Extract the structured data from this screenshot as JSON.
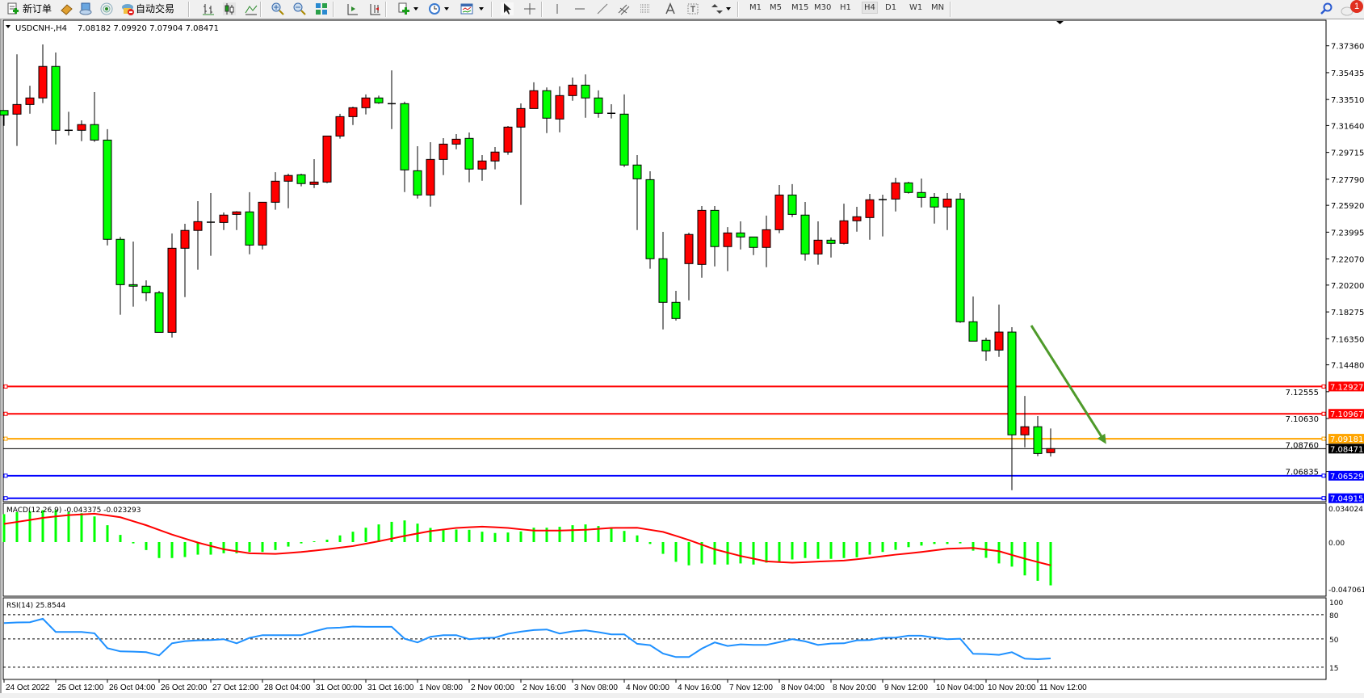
{
  "toolbar": {
    "new_order": "新订单",
    "auto_trading": "自动交易",
    "timeframes": [
      "M1",
      "M5",
      "M15",
      "M30",
      "H1",
      "H4",
      "D1",
      "W1",
      "MN"
    ],
    "active_timeframe": "H4"
  },
  "notifications": {
    "count": "1"
  },
  "chart": {
    "symbol_header": "USDCNH-,H4",
    "ohlc_header": "7.08182 7.09920 7.07904 7.08471"
  },
  "chart_data": {
    "type": "candlestick",
    "symbol": "USDCNH-",
    "timeframe": "H4",
    "colors": {
      "bull": "#ff0000",
      "bear": "#00ff00",
      "wick": "#000000"
    },
    "ohlc": [
      [
        7.3272,
        7.3272,
        7.3162,
        7.324
      ],
      [
        7.3246,
        7.3675,
        7.3018,
        7.3315
      ],
      [
        7.3315,
        7.345,
        7.3249,
        7.3362
      ],
      [
        7.3362,
        7.3746,
        7.3325,
        7.3588
      ],
      [
        7.3588,
        7.3688,
        7.3029,
        7.313
      ],
      [
        7.313,
        7.3263,
        7.3093,
        7.313
      ],
      [
        7.313,
        7.3201,
        7.3052,
        7.3171
      ],
      [
        7.3171,
        7.3404,
        7.3047,
        7.306
      ],
      [
        7.306,
        7.3138,
        7.2305,
        7.2348
      ],
      [
        7.2348,
        7.2365,
        7.1807,
        7.2023
      ],
      [
        7.2023,
        7.2332,
        7.1865,
        7.2012
      ],
      [
        7.2012,
        7.2054,
        7.1905,
        7.1965
      ],
      [
        7.1965,
        7.1979,
        7.1681,
        7.1681
      ],
      [
        7.1681,
        7.239,
        7.1644,
        7.2284
      ],
      [
        7.2284,
        7.246,
        7.1934,
        7.2412
      ],
      [
        7.2412,
        7.2622,
        7.2131,
        7.2475
      ],
      [
        7.2471,
        7.268,
        7.223,
        7.2471
      ],
      [
        7.2469,
        7.2541,
        7.2415,
        7.2522
      ],
      [
        7.2527,
        7.255,
        7.2415,
        7.2545
      ],
      [
        7.2545,
        7.2686,
        7.2241,
        7.2307
      ],
      [
        7.2307,
        7.2614,
        7.2276,
        7.2614
      ],
      [
        7.2614,
        7.283,
        7.256,
        7.2765
      ],
      [
        7.2765,
        7.2819,
        7.2571,
        7.2806
      ],
      [
        7.2811,
        7.2819,
        7.2728,
        7.2748
      ],
      [
        7.2742,
        7.2923,
        7.2716,
        7.2759
      ],
      [
        7.2759,
        7.3089,
        7.2751,
        7.3089
      ],
      [
        7.3089,
        7.3248,
        7.307,
        7.3228
      ],
      [
        7.3228,
        7.33,
        7.3168,
        7.3292
      ],
      [
        7.3292,
        7.3387,
        7.3244,
        7.3362
      ],
      [
        7.3362,
        7.3379,
        7.3319,
        7.3327
      ],
      [
        7.3321,
        7.356,
        7.3139,
        7.3321
      ],
      [
        7.3321,
        7.3335,
        7.2687,
        7.2846
      ],
      [
        7.284,
        7.3016,
        7.2641,
        7.2666
      ],
      [
        7.2666,
        7.3045,
        7.2583,
        7.2921
      ],
      [
        7.2921,
        7.3074,
        7.2809,
        7.3031
      ],
      [
        7.3031,
        7.3103,
        7.2994,
        7.3066
      ],
      [
        7.3072,
        7.3114,
        7.2757,
        7.2852
      ],
      [
        7.2852,
        7.2952,
        7.2768,
        7.291
      ],
      [
        7.291,
        7.301,
        7.285,
        7.2974
      ],
      [
        7.2974,
        7.3161,
        7.2954,
        7.3153
      ],
      [
        7.3153,
        7.3323,
        7.2595,
        7.3286
      ],
      [
        7.3286,
        7.3474,
        7.3286,
        7.3414
      ],
      [
        7.3414,
        7.3437,
        7.311,
        7.3217
      ],
      [
        7.3211,
        7.3445,
        7.3116,
        7.3379
      ],
      [
        7.3379,
        7.3508,
        7.3342,
        7.3454
      ],
      [
        7.3454,
        7.3531,
        7.322,
        7.3362
      ],
      [
        7.3362,
        7.3416,
        7.322,
        7.3252
      ],
      [
        7.3252,
        7.3317,
        7.3215,
        7.3252
      ],
      [
        7.3246,
        7.3387,
        7.2867,
        7.2881
      ],
      [
        7.2881,
        7.2952,
        7.2415,
        7.2782
      ],
      [
        7.2776,
        7.2836,
        7.2137,
        7.2209
      ],
      [
        7.2209,
        7.2402,
        7.1702,
        7.1896
      ],
      [
        7.1896,
        7.1979,
        7.1766,
        7.178
      ],
      [
        7.2174,
        7.2396,
        7.1911,
        7.2383
      ],
      [
        7.2168,
        7.2587,
        7.2073,
        7.2556
      ],
      [
        7.2556,
        7.2587,
        7.2154,
        7.2296
      ],
      [
        7.2296,
        7.2436,
        7.212,
        7.2394
      ],
      [
        7.2394,
        7.2477,
        7.2276,
        7.2365
      ],
      [
        7.2365,
        7.2365,
        7.2235,
        7.229
      ],
      [
        7.229,
        7.2518,
        7.2148,
        7.2417
      ],
      [
        7.2417,
        7.2738,
        7.2392,
        7.2666
      ],
      [
        7.2666,
        7.2744,
        7.2508,
        7.2527
      ],
      [
        7.2522,
        7.2616,
        7.2195,
        7.2243
      ],
      [
        7.2243,
        7.2477,
        7.2166,
        7.2342
      ],
      [
        7.2342,
        7.2361,
        7.2218,
        7.2319
      ],
      [
        7.2319,
        7.2604,
        7.2311,
        7.2481
      ],
      [
        7.2481,
        7.2581,
        7.2403,
        7.251
      ],
      [
        7.2504,
        7.2674,
        7.2345,
        7.2632
      ],
      [
        7.2633,
        7.2668,
        7.2369,
        7.2633
      ],
      [
        7.2637,
        7.279,
        7.2548,
        7.2753
      ],
      [
        7.2753,
        7.2761,
        7.2676,
        7.2684
      ],
      [
        7.2684,
        7.2784,
        7.2577,
        7.2649
      ],
      [
        7.2649,
        7.268,
        7.2461,
        7.258
      ],
      [
        7.258,
        7.268,
        7.2415,
        7.2637
      ],
      [
        7.2637,
        7.268,
        7.1749,
        7.1757
      ],
      [
        7.1757,
        7.1938,
        7.1618,
        7.1618
      ],
      [
        7.1624,
        7.1643,
        7.1476,
        7.1548
      ],
      [
        7.1554,
        7.188,
        7.1505,
        7.1683
      ],
      [
        7.1683,
        7.1718,
        7.0549,
        7.0946
      ],
      [
        7.0946,
        7.1225,
        7.0856,
        7.1004
      ],
      [
        7.1004,
        7.1081,
        7.0793,
        7.0812
      ],
      [
        7.08182,
        7.0992,
        7.07904,
        7.08471
      ]
    ],
    "y_ticks": [
      "7.37360",
      "7.35435",
      "7.33510",
      "7.31640",
      "7.29715",
      "7.27790",
      "7.25920",
      "7.23995",
      "7.22070",
      "7.20200",
      "7.18275",
      "7.16350",
      "7.14480",
      "7.12555",
      "7.10630",
      "7.08760",
      "7.06835"
    ],
    "x_labels": [
      {
        "bar": 0,
        "text": "24 Oct 2022"
      },
      {
        "bar": 4,
        "text": "25 Oct 12:00"
      },
      {
        "bar": 8,
        "text": "26 Oct 04:00"
      },
      {
        "bar": 12,
        "text": "26 Oct 20:00"
      },
      {
        "bar": 16,
        "text": "27 Oct 12:00"
      },
      {
        "bar": 20,
        "text": "28 Oct 04:00"
      },
      {
        "bar": 24,
        "text": "31 Oct 00:00"
      },
      {
        "bar": 28,
        "text": "31 Oct 16:00"
      },
      {
        "bar": 32,
        "text": "1 Nov 08:00"
      },
      {
        "bar": 36,
        "text": "2 Nov 00:00"
      },
      {
        "bar": 40,
        "text": "2 Nov 16:00"
      },
      {
        "bar": 44,
        "text": "3 Nov 08:00"
      },
      {
        "bar": 48,
        "text": "4 Nov 00:00"
      },
      {
        "bar": 52,
        "text": "4 Nov 16:00"
      },
      {
        "bar": 56,
        "text": "7 Nov 12:00"
      },
      {
        "bar": 60,
        "text": "8 Nov 04:00"
      },
      {
        "bar": 64,
        "text": "8 Nov 20:00"
      },
      {
        "bar": 68,
        "text": "9 Nov 12:00"
      },
      {
        "bar": 72,
        "text": "10 Nov 04:00"
      },
      {
        "bar": 76,
        "text": "10 Nov 20:00"
      },
      {
        "bar": 80,
        "text": "11 Nov 12:00"
      }
    ],
    "levels": [
      {
        "price": 7.12927,
        "label": "7.12927",
        "color": "#ff0000"
      },
      {
        "price": 7.10967,
        "label": "7.10967",
        "color": "#ff0000"
      },
      {
        "price": 7.09181,
        "label": "7.09181",
        "color": "#ffa500"
      },
      {
        "price": 7.08471,
        "label": "7.08471",
        "color": "#000000",
        "current": true
      },
      {
        "price": 7.06529,
        "label": "7.06529",
        "color": "#0000ff"
      },
      {
        "price": 7.04915,
        "label": "7.04915",
        "color": "#0000ff"
      }
    ],
    "annotations": [
      {
        "type": "arrow",
        "color": "#4e9a2a",
        "from": {
          "bar": 79.5,
          "price": 7.173
        },
        "to": {
          "bar": 85.3,
          "price": 7.088
        }
      }
    ],
    "macd": {
      "label": "MACD(12,26,9) -0.043375 -0.023293",
      "axis_labels": [
        {
          "value": 0.034024,
          "text": "0.034024"
        },
        {
          "value": 0,
          "text": "0.00"
        },
        {
          "value": -0.047061,
          "text": "-0.047061"
        }
      ],
      "histogram_color": "#00ff00",
      "signal_color": "#ff0000",
      "histogram": [
        0.028,
        0.03,
        0.031,
        0.032,
        0.032,
        0.03,
        0.029,
        0.0257,
        0.0169,
        0.0072,
        -0.0013,
        -0.008,
        -0.016,
        -0.016,
        -0.015,
        -0.0126,
        -0.0126,
        -0.0112,
        -0.0112,
        -0.0099,
        -0.0099,
        -0.008,
        -0.0045,
        -0.0013,
        0.0008,
        0.0024,
        0.0067,
        0.0104,
        0.0144,
        0.0177,
        0.0203,
        0.0217,
        0.0185,
        0.0142,
        0.0131,
        0.0126,
        0.0123,
        0.0104,
        0.0091,
        0.0096,
        0.0107,
        0.0144,
        0.0144,
        0.0153,
        0.0169,
        0.0177,
        0.0161,
        0.015,
        0.0112,
        0.0067,
        -0.0019,
        -0.0118,
        -0.0198,
        -0.0233,
        -0.0214,
        -0.0225,
        -0.0225,
        -0.0214,
        -0.0225,
        -0.0206,
        -0.0198,
        -0.0174,
        -0.016,
        -0.0168,
        -0.0168,
        -0.016,
        -0.0153,
        -0.0126,
        -0.0099,
        -0.0078,
        -0.0051,
        -0.0035,
        -0.0019,
        -0.0019,
        -0.0013,
        -0.0086,
        -0.0158,
        -0.0214,
        -0.0246,
        -0.0334,
        -0.0388,
        -0.043375
      ],
      "signal": [
        0.0182,
        0.0202,
        0.0222,
        0.0243,
        0.0257,
        0.027,
        0.0277,
        0.0284,
        0.0267,
        0.0249,
        0.0209,
        0.0169,
        0.0122,
        0.0075,
        0.0035,
        -0.0005,
        -0.0039,
        -0.0072,
        -0.0092,
        -0.0112,
        -0.0115,
        -0.0118,
        -0.0109,
        -0.0099,
        -0.0086,
        -0.0072,
        -0.0056,
        -0.004,
        -0.0016,
        0.0008,
        0.0035,
        0.0062,
        0.0086,
        0.011,
        0.0126,
        0.0142,
        0.0149,
        0.0155,
        0.0149,
        0.0142,
        0.0128,
        0.0115,
        0.0115,
        0.0115,
        0.0119,
        0.0123,
        0.0133,
        0.0142,
        0.0143,
        0.0144,
        0.0123,
        0.0102,
        0.0062,
        0.0021,
        -0.0026,
        -0.0072,
        -0.0106,
        -0.0139,
        -0.0166,
        -0.0193,
        -0.02,
        -0.0206,
        -0.0201,
        -0.0195,
        -0.019,
        -0.0185,
        -0.0172,
        -0.0158,
        -0.0142,
        -0.0126,
        -0.0113,
        -0.0099,
        -0.0083,
        -0.0067,
        -0.0063,
        -0.0059,
        -0.0075,
        -0.0091,
        -0.0129,
        -0.0166,
        -0.02,
        -0.023293
      ]
    },
    "rsi": {
      "label": "RSI(14) 25.8544",
      "color": "#1e90ff",
      "axis_labels": [
        {
          "value": 100,
          "text": "100"
        },
        {
          "value": 80,
          "text": "80"
        },
        {
          "value": 50,
          "text": "50"
        },
        {
          "value": 15,
          "text": "15"
        }
      ],
      "levels": [
        80,
        50,
        15
      ],
      "values": [
        69.7,
        70.4,
        70.7,
        75,
        58.7,
        58.7,
        58.7,
        57,
        38.6,
        34.6,
        34.3,
        33.6,
        29.6,
        44.6,
        47.3,
        48.3,
        48.7,
        49.7,
        44.6,
        51.3,
        54.7,
        54.7,
        54.7,
        54.7,
        59.4,
        63.4,
        64,
        65.4,
        65,
        65,
        65,
        50.3,
        45.7,
        52.7,
        54.7,
        54.7,
        49.7,
        51,
        51.7,
        56.4,
        59,
        61,
        61.7,
        56.7,
        59.4,
        60.7,
        58.4,
        55.7,
        55.7,
        44,
        42.3,
        31.9,
        27.6,
        27.6,
        38,
        45.7,
        41.3,
        43.3,
        42.6,
        42.6,
        46,
        49.7,
        47,
        42.6,
        44.3,
        44.6,
        48.3,
        48.7,
        51.3,
        51.7,
        54,
        54,
        51.7,
        49.7,
        50.3,
        31.6,
        31.3,
        30.3,
        33.6,
        25.6,
        24.9,
        25.8544
      ]
    }
  }
}
